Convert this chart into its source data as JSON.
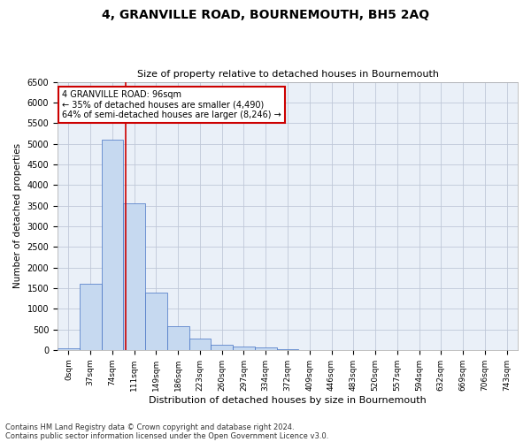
{
  "title": "4, GRANVILLE ROAD, BOURNEMOUTH, BH5 2AQ",
  "subtitle": "Size of property relative to detached houses in Bournemouth",
  "xlabel": "Distribution of detached houses by size in Bournemouth",
  "ylabel": "Number of detached properties",
  "footnote1": "Contains HM Land Registry data © Crown copyright and database right 2024.",
  "footnote2": "Contains public sector information licensed under the Open Government Licence v3.0.",
  "bar_labels": [
    "0sqm",
    "37sqm",
    "74sqm",
    "111sqm",
    "149sqm",
    "186sqm",
    "223sqm",
    "260sqm",
    "297sqm",
    "334sqm",
    "372sqm",
    "409sqm",
    "446sqm",
    "483sqm",
    "520sqm",
    "557sqm",
    "594sqm",
    "632sqm",
    "669sqm",
    "706sqm",
    "743sqm"
  ],
  "bar_values": [
    50,
    1600,
    5100,
    3550,
    1400,
    580,
    270,
    130,
    90,
    55,
    10,
    2,
    0,
    0,
    0,
    0,
    0,
    0,
    0,
    0,
    0
  ],
  "bar_color": "#c6d9f0",
  "bar_edge_color": "#4472c4",
  "ylim": [
    0,
    6500
  ],
  "yticks": [
    0,
    500,
    1000,
    1500,
    2000,
    2500,
    3000,
    3500,
    4000,
    4500,
    5000,
    5500,
    6000,
    6500
  ],
  "vline_x": 2.59,
  "vline_color": "#cc0000",
  "annotation_text": "4 GRANVILLE ROAD: 96sqm\n← 35% of detached houses are smaller (4,490)\n64% of semi-detached houses are larger (8,246) →",
  "annotation_box_color": "#cc0000",
  "grid_color": "#c0c8d8",
  "bg_color": "#eaf0f8"
}
